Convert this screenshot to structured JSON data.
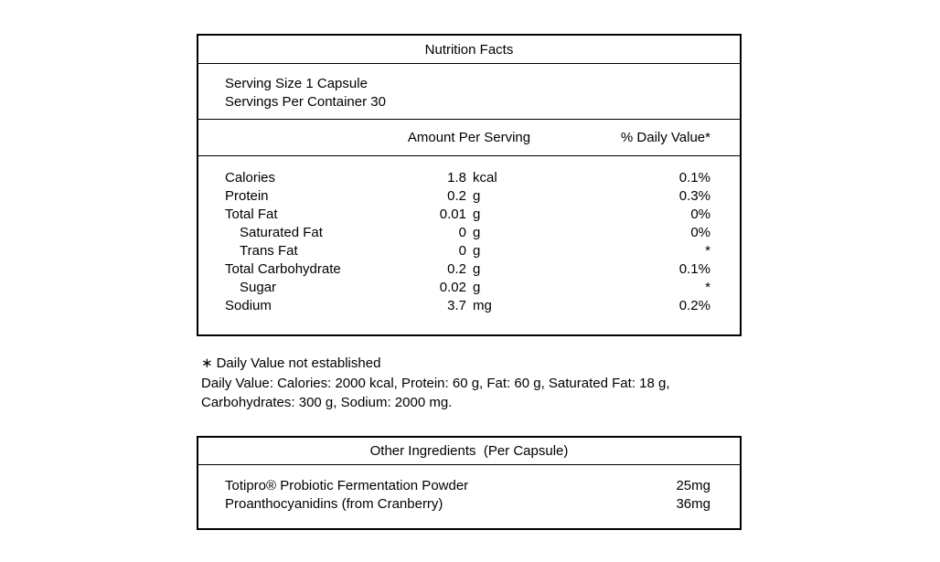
{
  "colors": {
    "background": "#ffffff",
    "text": "#000000",
    "border": "#000000"
  },
  "nutrition_table": {
    "title": "Nutrition Facts",
    "serving_size": "Serving Size 1 Capsule",
    "servings_per_container": "Servings Per Container 30",
    "columns": {
      "amount": "Amount Per Serving",
      "daily_value": "% Daily Value*"
    },
    "rows": [
      {
        "label": "Calories",
        "indent": false,
        "value": "1.8",
        "unit": "kcal",
        "dv": "0.1%"
      },
      {
        "label": "Protein",
        "indent": false,
        "value": "0.2",
        "unit": "g",
        "dv": "0.3%"
      },
      {
        "label": "Total Fat",
        "indent": false,
        "value": "0.01",
        "unit": "g",
        "dv": "0%"
      },
      {
        "label": "Saturated Fat",
        "indent": true,
        "value": "0",
        "unit": "g",
        "dv": "0%"
      },
      {
        "label": "Trans Fat",
        "indent": true,
        "value": "0",
        "unit": "g",
        "dv": "*"
      },
      {
        "label": "Total Carbohydrate",
        "indent": false,
        "value": "0.2",
        "unit": "g",
        "dv": "0.1%"
      },
      {
        "label": "Sugar",
        "indent": true,
        "value": "0.02",
        "unit": "g",
        "dv": "*"
      },
      {
        "label": "Sodium",
        "indent": false,
        "value": "3.7",
        "unit": "mg",
        "dv": "0.2%"
      }
    ]
  },
  "footnote": {
    "asterisk": "∗",
    "asterisk_text": "Daily Value not established",
    "daily_values_line1": "Daily Value: Calories: 2000 kcal, Protein: 60 g, Fat: 60 g, Saturated Fat: 18 g,",
    "daily_values_line2": "Carbohydrates: 300 g, Sodium: 2000 mg."
  },
  "other_ingredients": {
    "title": "Other Ingredients  (Per Capsule)",
    "rows": [
      {
        "name": "Totipro® Probiotic Fermentation Powder",
        "amount": "25mg"
      },
      {
        "name": "Proanthocyanidins (from Cranberry)",
        "amount": "36mg"
      }
    ]
  }
}
